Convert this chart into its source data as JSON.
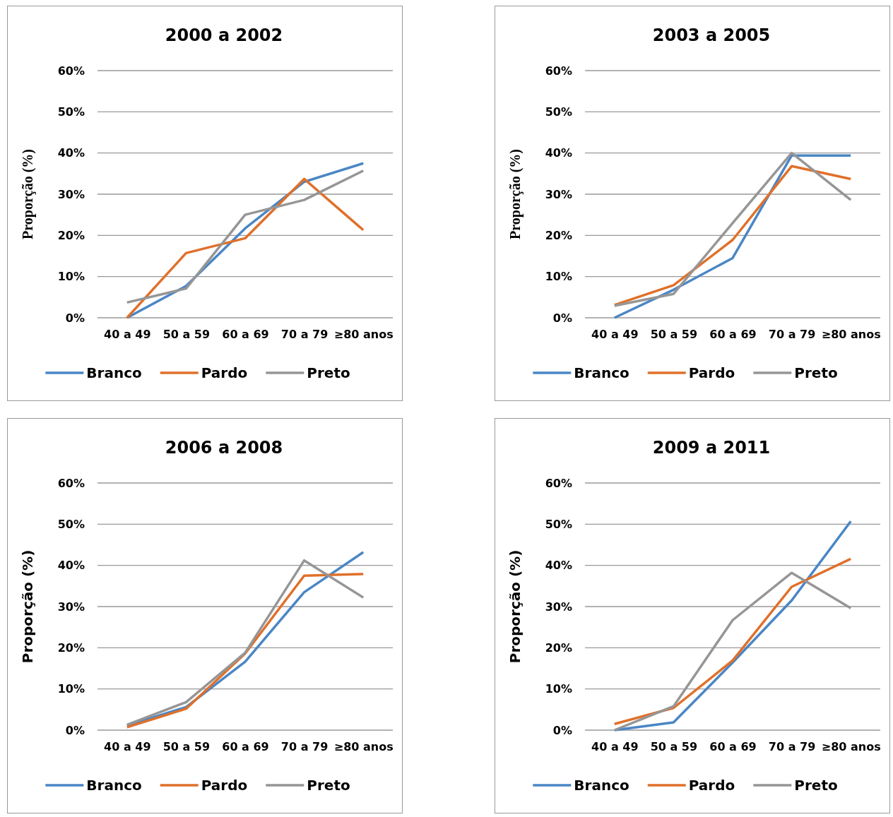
{
  "chart_data": [
    {
      "type": "line",
      "title": "2000 a 2002",
      "ylabel": "Proporção (%)",
      "categories": [
        "40 a 49",
        "50 a 59",
        "60 a 69",
        "70 a 79",
        "≥80 anos"
      ],
      "ylim": [
        0,
        60
      ],
      "yticks": [
        {
          "value": 0,
          "label": "0%"
        },
        {
          "value": 10,
          "label": "10%"
        },
        {
          "value": 20,
          "label": "20%"
        },
        {
          "value": 30,
          "label": "30%"
        },
        {
          "value": 40,
          "label": "40%"
        },
        {
          "value": 50,
          "label": "50%"
        },
        {
          "value": 60,
          "label": "60%"
        }
      ],
      "grid": "y",
      "legend": "bottom",
      "marker": "none",
      "line_style": "solid",
      "series": [
        {
          "name": "Branco",
          "color": "#4a86c5",
          "values": [
            0,
            7.7,
            21.7,
            33,
            37.5
          ]
        },
        {
          "name": "Pardo",
          "color": "#e0702a",
          "values": [
            0,
            15.7,
            19.3,
            33.7,
            21.3
          ]
        },
        {
          "name": "Preto",
          "color": "#969696",
          "values": [
            3.7,
            7.1,
            25,
            28.6,
            35.7
          ]
        }
      ]
    },
    {
      "type": "line",
      "title": "2003 a 2005",
      "ylabel": "Proporção (%)",
      "categories": [
        "40 a 49",
        "50 a 59",
        "60 a 69",
        "70 a 79",
        "≥80 anos"
      ],
      "ylim": [
        0,
        60
      ],
      "yticks": [
        {
          "value": 0,
          "label": "0%"
        },
        {
          "value": 10,
          "label": "10%"
        },
        {
          "value": 20,
          "label": "20%"
        },
        {
          "value": 30,
          "label": "30%"
        },
        {
          "value": 40,
          "label": "40%"
        },
        {
          "value": 50,
          "label": "50%"
        },
        {
          "value": 60,
          "label": "60%"
        }
      ],
      "grid": "y",
      "legend": "bottom",
      "marker": "none",
      "line_style": "solid",
      "series": [
        {
          "name": "Branco",
          "color": "#4a86c5",
          "values": [
            0,
            6.8,
            14.5,
            39.4,
            39.4
          ]
        },
        {
          "name": "Pardo",
          "color": "#e0702a",
          "values": [
            3.1,
            7.9,
            18.9,
            36.8,
            33.7
          ]
        },
        {
          "name": "Preto",
          "color": "#969696",
          "values": [
            2.9,
            5.8,
            23,
            40,
            28.6
          ]
        }
      ]
    },
    {
      "type": "line",
      "title": "2006 a 2008",
      "ylabel": "Proporção (%)",
      "categories": [
        "40 a 49",
        "50 a 59",
        "60 a 69",
        "70 a 79",
        "≥80 anos"
      ],
      "ylim": [
        0,
        60
      ],
      "yticks": [
        {
          "value": 0,
          "label": "0%"
        },
        {
          "value": 10,
          "label": "10%"
        },
        {
          "value": 20,
          "label": "20%"
        },
        {
          "value": 30,
          "label": "30%"
        },
        {
          "value": 40,
          "label": "40%"
        },
        {
          "value": 50,
          "label": "50%"
        },
        {
          "value": 60,
          "label": "60%"
        }
      ],
      "grid": "y",
      "legend": "bottom",
      "marker": "none",
      "line_style": "solid",
      "series": [
        {
          "name": "Branco",
          "color": "#4a86c5",
          "values": [
            1.1,
            5.6,
            16.6,
            33.5,
            43.2
          ]
        },
        {
          "name": "Pardo",
          "color": "#e0702a",
          "values": [
            0.7,
            5.2,
            18.6,
            37.5,
            37.9
          ]
        },
        {
          "name": "Preto",
          "color": "#969696",
          "values": [
            1.3,
            6.8,
            18.8,
            41.2,
            32.2
          ]
        }
      ]
    },
    {
      "type": "line",
      "title": "2009 a 2011",
      "ylabel": "Proporção (%)",
      "categories": [
        "40 a 49",
        "50 a 59",
        "60 a 69",
        "70 a 79",
        "≥80 anos"
      ],
      "ylim": [
        0,
        60
      ],
      "yticks": [
        {
          "value": 0,
          "label": "0%"
        },
        {
          "value": 10,
          "label": "10%"
        },
        {
          "value": 20,
          "label": "20%"
        },
        {
          "value": 30,
          "label": "30%"
        },
        {
          "value": 40,
          "label": "40%"
        },
        {
          "value": 50,
          "label": "50%"
        },
        {
          "value": 60,
          "label": "60%"
        }
      ],
      "grid": "y",
      "legend": "bottom",
      "marker": "none",
      "line_style": "solid",
      "series": [
        {
          "name": "Branco",
          "color": "#4a86c5",
          "values": [
            0,
            1.9,
            16.4,
            31.5,
            50.7
          ]
        },
        {
          "name": "Pardo",
          "color": "#e0702a",
          "values": [
            1.5,
            5.4,
            16.9,
            34.8,
            41.6
          ]
        },
        {
          "name": "Preto",
          "color": "#969696",
          "values": [
            0,
            5.8,
            26.7,
            38.2,
            29.6
          ]
        }
      ]
    }
  ]
}
